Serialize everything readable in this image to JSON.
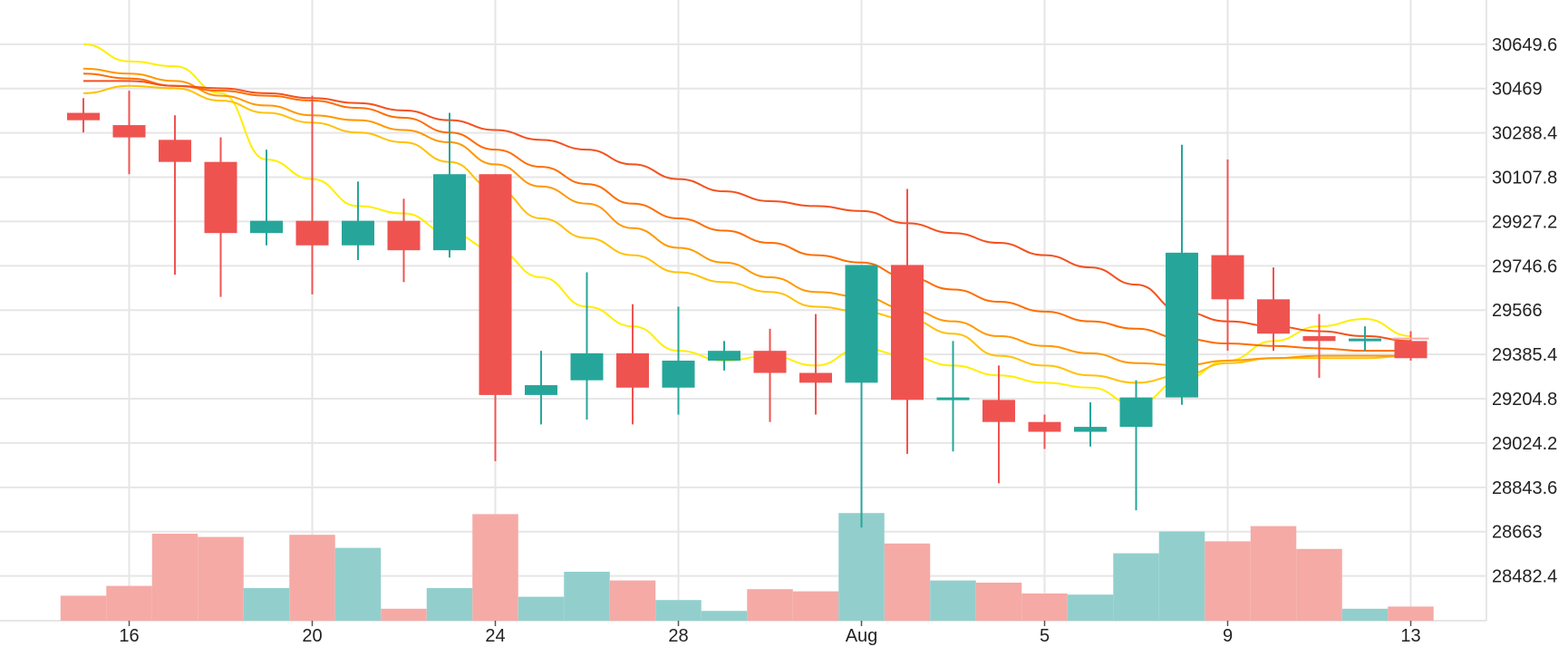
{
  "chart_data": {
    "type": "candlestick",
    "colors": {
      "up": "#26a69a",
      "down": "#ef5350",
      "volume_up": "#92cfcc",
      "volume_down": "#f5aaa6",
      "grid": "#e6e6e6",
      "axis_text": "#222222"
    },
    "y_axis": {
      "min": 28300,
      "max": 30830,
      "ticks": [
        "30649.6",
        "30469",
        "30288.4",
        "30107.8",
        "29927.2",
        "29746.6",
        "29566",
        "29385.4",
        "29204.8",
        "29024.2",
        "28843.6",
        "28663",
        "28482.4"
      ]
    },
    "x_axis": {
      "tick_labels": [
        {
          "label": "16",
          "index": 1
        },
        {
          "label": "20",
          "index": 5
        },
        {
          "label": "24",
          "index": 9
        },
        {
          "label": "28",
          "index": 13
        },
        {
          "label": "Aug",
          "index": 17
        },
        {
          "label": "5",
          "index": 21
        },
        {
          "label": "9",
          "index": 25
        },
        {
          "label": "13",
          "index": 29
        }
      ]
    },
    "candles": [
      {
        "o": 30370,
        "h": 30430,
        "l": 30290,
        "c": 30340
      },
      {
        "o": 30320,
        "h": 30460,
        "l": 30120,
        "c": 30270
      },
      {
        "o": 30260,
        "h": 30360,
        "l": 29710,
        "c": 30170
      },
      {
        "o": 30170,
        "h": 30270,
        "l": 29620,
        "c": 29880
      },
      {
        "o": 29880,
        "h": 30220,
        "l": 29830,
        "c": 29930
      },
      {
        "o": 29930,
        "h": 30440,
        "l": 29630,
        "c": 29830
      },
      {
        "o": 29830,
        "h": 30090,
        "l": 29770,
        "c": 29930
      },
      {
        "o": 29930,
        "h": 30020,
        "l": 29680,
        "c": 29810
      },
      {
        "o": 29810,
        "h": 30370,
        "l": 29780,
        "c": 30120
      },
      {
        "o": 30120,
        "h": 30120,
        "l": 28950,
        "c": 29220
      },
      {
        "o": 29220,
        "h": 29400,
        "l": 29100,
        "c": 29260
      },
      {
        "o": 29280,
        "h": 29720,
        "l": 29120,
        "c": 29390
      },
      {
        "o": 29390,
        "h": 29590,
        "l": 29100,
        "c": 29250
      },
      {
        "o": 29250,
        "h": 29580,
        "l": 29140,
        "c": 29360
      },
      {
        "o": 29360,
        "h": 29440,
        "l": 29320,
        "c": 29400
      },
      {
        "o": 29400,
        "h": 29490,
        "l": 29110,
        "c": 29310
      },
      {
        "o": 29310,
        "h": 29550,
        "l": 29140,
        "c": 29270
      },
      {
        "o": 29270,
        "h": 29750,
        "l": 28680,
        "c": 29750
      },
      {
        "o": 29750,
        "h": 30060,
        "l": 28980,
        "c": 29200
      },
      {
        "o": 29200,
        "h": 29440,
        "l": 28990,
        "c": 29210
      },
      {
        "o": 29200,
        "h": 29340,
        "l": 28860,
        "c": 29110
      },
      {
        "o": 29110,
        "h": 29140,
        "l": 29000,
        "c": 29070
      },
      {
        "o": 29070,
        "h": 29190,
        "l": 29010,
        "c": 29090
      },
      {
        "o": 29090,
        "h": 29280,
        "l": 28750,
        "c": 29210
      },
      {
        "o": 29210,
        "h": 30240,
        "l": 29180,
        "c": 29800
      },
      {
        "o": 29790,
        "h": 30180,
        "l": 29400,
        "c": 29610
      },
      {
        "o": 29610,
        "h": 29740,
        "l": 29400,
        "c": 29470
      },
      {
        "o": 29460,
        "h": 29550,
        "l": 29290,
        "c": 29440
      },
      {
        "o": 29440,
        "h": 29500,
        "l": 29400,
        "c": 29450
      },
      {
        "o": 29440,
        "h": 29480,
        "l": 29360,
        "c": 29370
      }
    ],
    "volume": [
      {
        "v": 0.23,
        "dir": "down"
      },
      {
        "v": 0.32,
        "dir": "down"
      },
      {
        "v": 0.8,
        "dir": "down"
      },
      {
        "v": 0.77,
        "dir": "down"
      },
      {
        "v": 0.3,
        "dir": "up"
      },
      {
        "v": 0.79,
        "dir": "down"
      },
      {
        "v": 0.67,
        "dir": "up"
      },
      {
        "v": 0.11,
        "dir": "down"
      },
      {
        "v": 0.3,
        "dir": "up"
      },
      {
        "v": 0.98,
        "dir": "down"
      },
      {
        "v": 0.22,
        "dir": "up"
      },
      {
        "v": 0.45,
        "dir": "up"
      },
      {
        "v": 0.37,
        "dir": "down"
      },
      {
        "v": 0.19,
        "dir": "up"
      },
      {
        "v": 0.09,
        "dir": "up"
      },
      {
        "v": 0.29,
        "dir": "down"
      },
      {
        "v": 0.27,
        "dir": "down"
      },
      {
        "v": 0.99,
        "dir": "up"
      },
      {
        "v": 0.71,
        "dir": "down"
      },
      {
        "v": 0.37,
        "dir": "up"
      },
      {
        "v": 0.35,
        "dir": "down"
      },
      {
        "v": 0.25,
        "dir": "down"
      },
      {
        "v": 0.24,
        "dir": "up"
      },
      {
        "v": 0.62,
        "dir": "up"
      },
      {
        "v": 0.82,
        "dir": "up"
      },
      {
        "v": 0.73,
        "dir": "down"
      },
      {
        "v": 0.87,
        "dir": "down"
      },
      {
        "v": 0.66,
        "dir": "down"
      },
      {
        "v": 0.11,
        "dir": "up"
      },
      {
        "v": 0.13,
        "dir": "down"
      }
    ],
    "moving_averages": [
      {
        "color": "#ffee00",
        "values": [
          30650,
          30580,
          30560,
          30450,
          30180,
          30100,
          29990,
          29960,
          29880,
          29810,
          29700,
          29580,
          29500,
          29400,
          29360,
          29380,
          29340,
          29410,
          29380,
          29340,
          29300,
          29270,
          29250,
          29180,
          29280,
          29360,
          29440,
          29500,
          29530,
          29460
        ]
      },
      {
        "color": "#ffc107",
        "values": [
          30450,
          30480,
          30470,
          30420,
          30370,
          30330,
          30290,
          30250,
          30170,
          30060,
          29940,
          29860,
          29790,
          29720,
          29680,
          29640,
          29580,
          29560,
          29530,
          29470,
          29380,
          29340,
          29300,
          29270,
          29300,
          29350,
          29370,
          29370,
          29370,
          29380
        ]
      },
      {
        "color": "#ff9800",
        "values": [
          30550,
          30530,
          30500,
          30440,
          30400,
          30360,
          30340,
          30300,
          30250,
          30160,
          30070,
          30000,
          29900,
          29820,
          29760,
          29700,
          29640,
          29620,
          29570,
          29520,
          29460,
          29420,
          29390,
          29350,
          29340,
          29360,
          29370,
          29380,
          29380,
          29380
        ]
      },
      {
        "color": "#ff6d00",
        "values": [
          30530,
          30510,
          30480,
          30460,
          30440,
          30420,
          30390,
          30350,
          30290,
          30220,
          30150,
          30080,
          30000,
          29940,
          29890,
          29840,
          29790,
          29760,
          29700,
          29650,
          29600,
          29560,
          29520,
          29490,
          29450,
          29430,
          29420,
          29410,
          29400,
          29400
        ]
      },
      {
        "color": "#f4511e",
        "values": [
          30500,
          30500,
          30480,
          30470,
          30450,
          30430,
          30410,
          30380,
          30340,
          30300,
          30260,
          30220,
          30160,
          30100,
          30050,
          30010,
          29990,
          29970,
          29920,
          29880,
          29840,
          29790,
          29740,
          29670,
          29560,
          29520,
          29500,
          29480,
          29460,
          29440
        ]
      }
    ]
  }
}
